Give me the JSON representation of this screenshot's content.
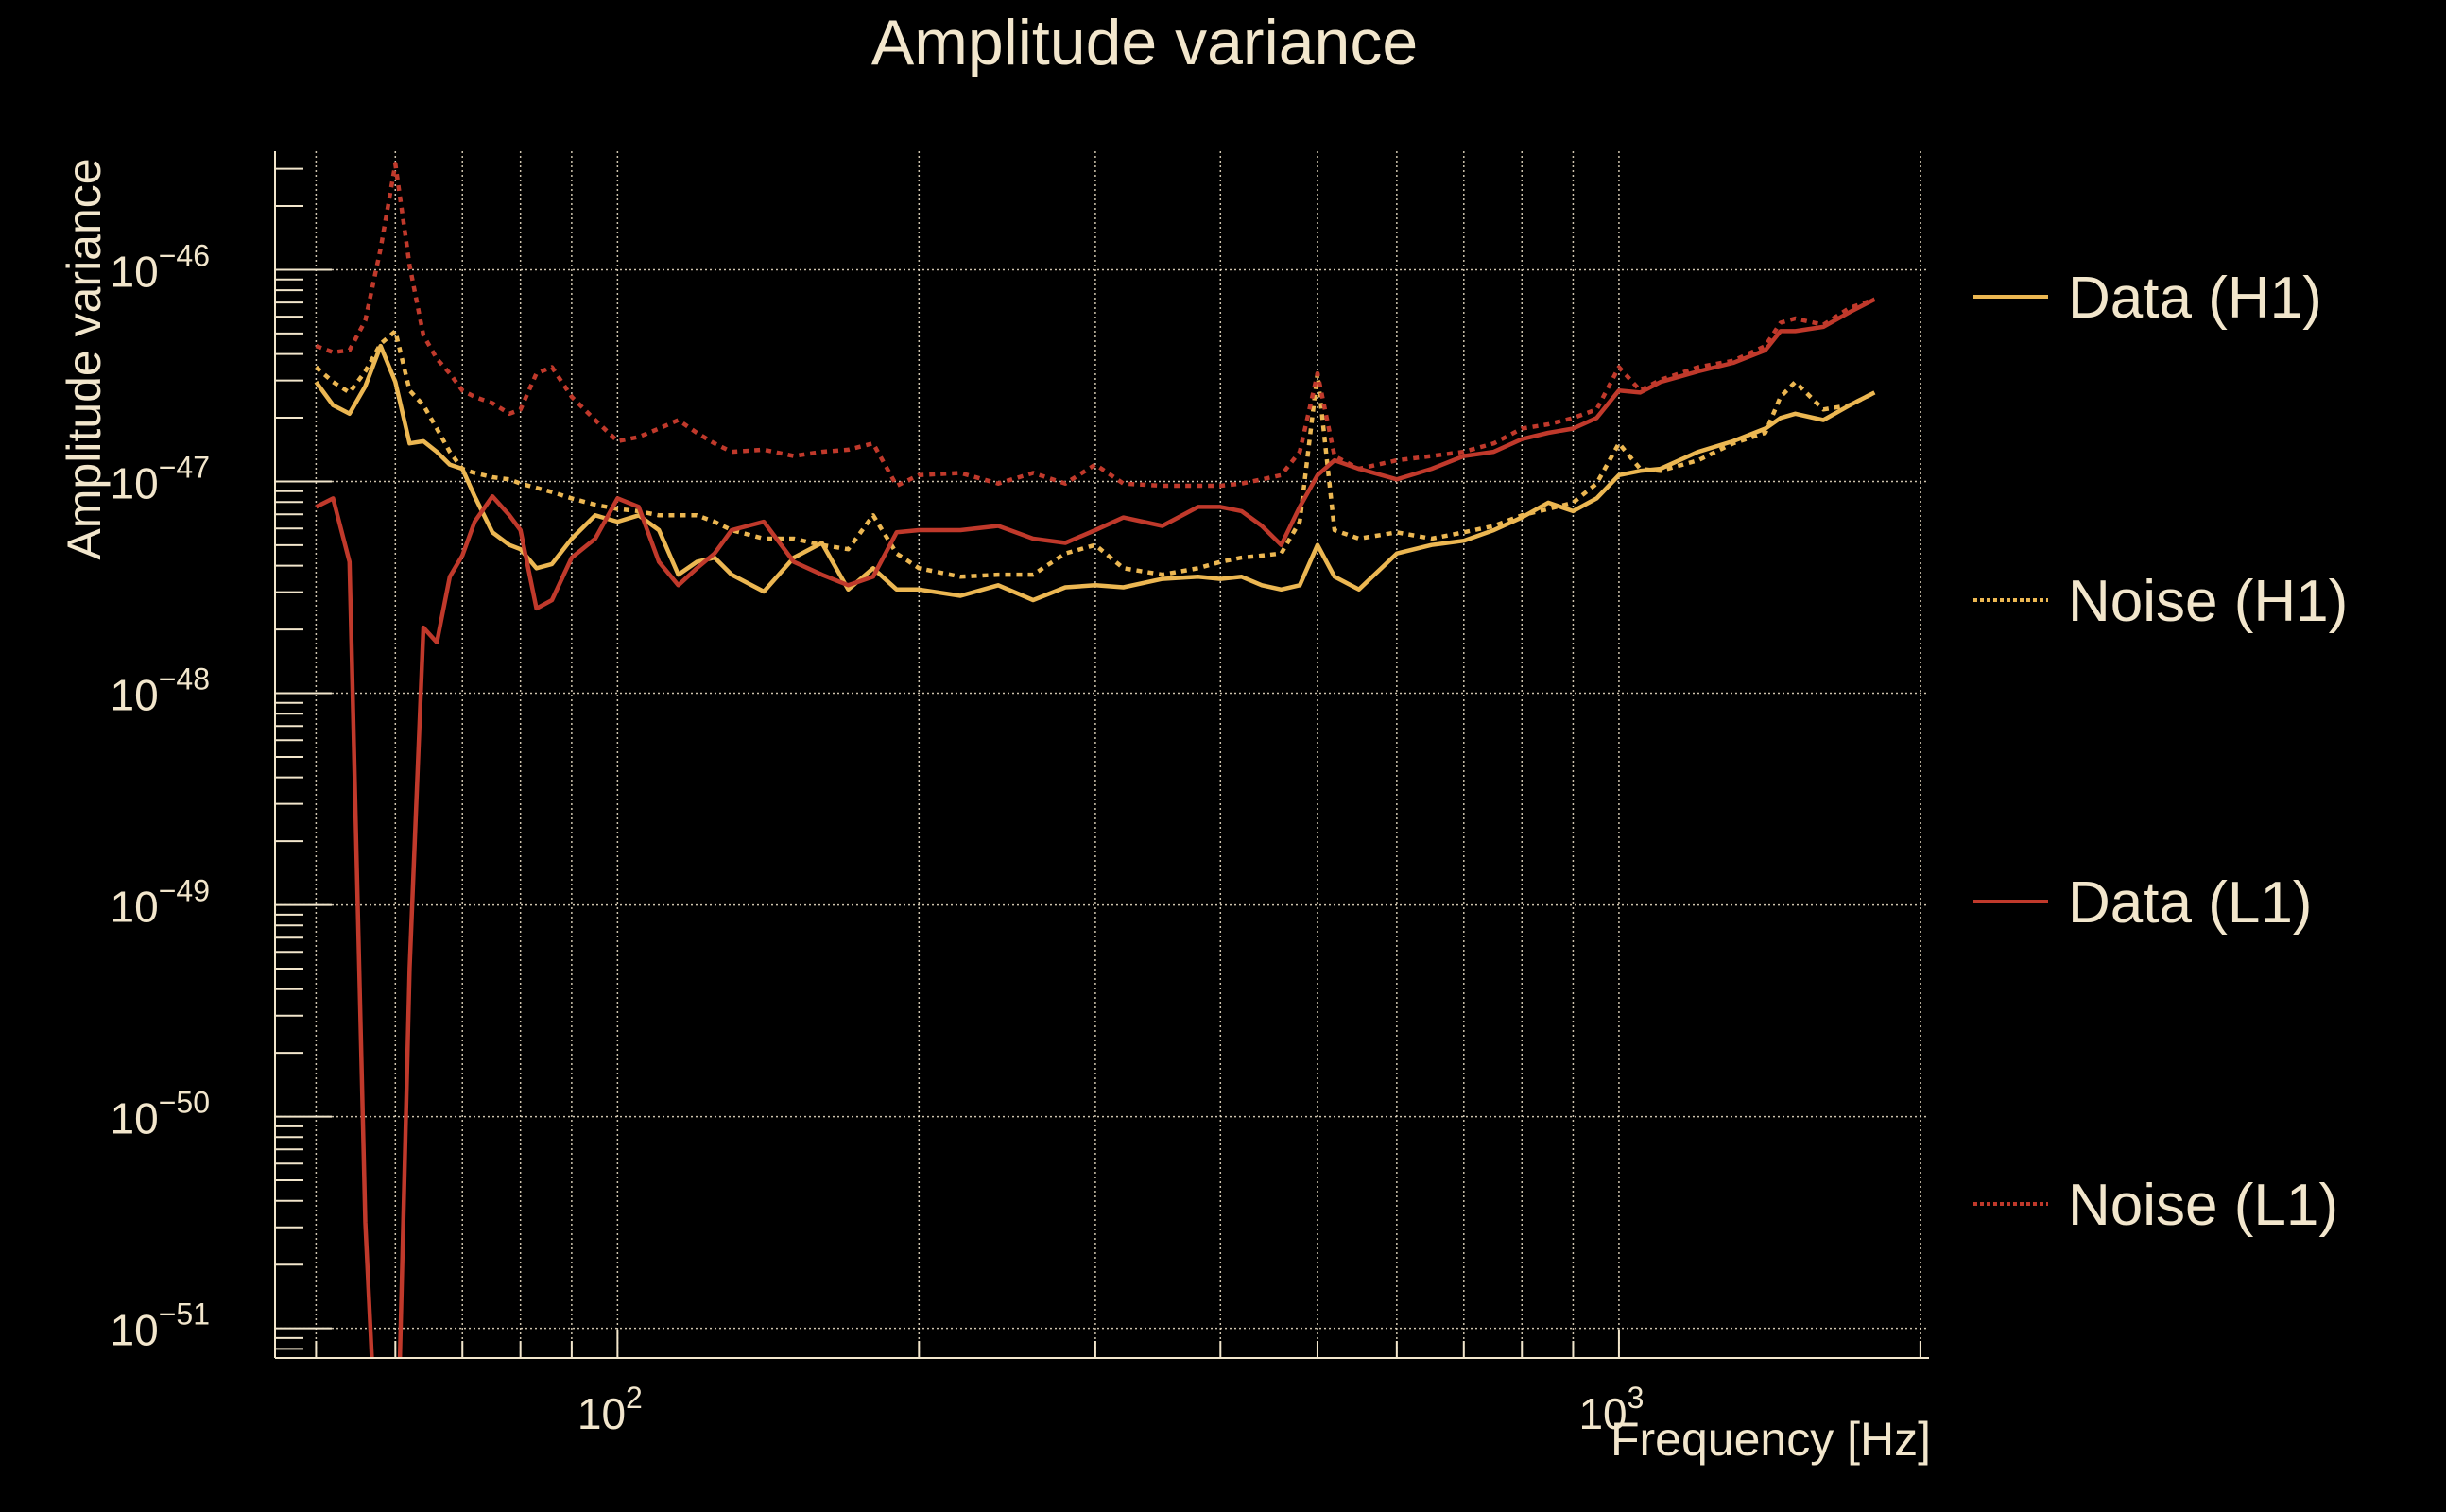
{
  "chart_data": {
    "type": "line",
    "title": "Amplitude variance",
    "xlabel": "Frequency [Hz]",
    "ylabel": "Amplitude variance",
    "xscale": "log",
    "yscale": "log",
    "xlim": [
      45.5,
      2040
    ],
    "ylim_log10": [
      -51.14,
      -45.44
    ],
    "grid": true,
    "legend_position": "right",
    "x_tick_labels": [
      {
        "base": "10",
        "exp": "2",
        "value": 100
      },
      {
        "base": "10",
        "exp": "3",
        "value": 1000
      }
    ],
    "y_tick_labels": [
      {
        "base": "10",
        "exp": "−46",
        "value_log10": -46
      },
      {
        "base": "10",
        "exp": "−47",
        "value_log10": -47
      },
      {
        "base": "10",
        "exp": "−48",
        "value_log10": -48
      },
      {
        "base": "10",
        "exp": "−49",
        "value_log10": -49
      },
      {
        "base": "10",
        "exp": "−50",
        "value_log10": -50
      },
      {
        "base": "10",
        "exp": "−51",
        "value_log10": -51
      }
    ],
    "x": [
      50,
      52,
      54,
      56,
      58,
      60,
      62,
      64,
      66,
      68,
      70,
      72,
      75,
      78,
      80,
      83,
      86,
      90,
      95,
      100,
      105,
      110,
      115,
      120,
      125,
      130,
      140,
      150,
      160,
      170,
      180,
      190,
      200,
      220,
      240,
      260,
      280,
      300,
      320,
      350,
      380,
      400,
      420,
      440,
      460,
      480,
      500,
      520,
      550,
      600,
      650,
      700,
      750,
      800,
      850,
      900,
      950,
      1000,
      1050,
      1100,
      1200,
      1300,
      1400,
      1450,
      1500,
      1600,
      1700,
      1800
    ],
    "series": [
      {
        "name": "Data (H1)",
        "color": "#ecb752",
        "style": "solid",
        "log10_values": [
          -46.53,
          -46.64,
          -46.68,
          -46.55,
          -46.36,
          -46.53,
          -46.82,
          -46.81,
          -46.86,
          -46.92,
          -46.94,
          -47.07,
          -47.24,
          -47.3,
          -47.32,
          -47.41,
          -47.39,
          -47.27,
          -47.16,
          -47.19,
          -47.16,
          -47.23,
          -47.44,
          -47.38,
          -47.36,
          -47.44,
          -47.52,
          -47.36,
          -47.29,
          -47.51,
          -47.41,
          -47.51,
          -47.51,
          -47.54,
          -47.49,
          -47.56,
          -47.5,
          -47.49,
          -47.5,
          -47.46,
          -47.45,
          -47.46,
          -47.45,
          -47.49,
          -47.51,
          -47.49,
          -47.3,
          -47.45,
          -47.51,
          -47.34,
          -47.3,
          -47.28,
          -47.23,
          -47.17,
          -47.1,
          -47.14,
          -47.08,
          -46.97,
          -46.95,
          -46.94,
          -46.86,
          -46.81,
          -46.75,
          -46.7,
          -46.68,
          -46.71,
          -46.64,
          -46.58
        ]
      },
      {
        "name": "Noise (H1)",
        "color": "#ecb752",
        "style": "dotted",
        "log10_values": [
          -46.46,
          -46.53,
          -46.58,
          -46.48,
          -46.35,
          -46.29,
          -46.57,
          -46.64,
          -46.75,
          -46.86,
          -46.94,
          -46.96,
          -46.98,
          -46.99,
          -47.01,
          -47.03,
          -47.05,
          -47.08,
          -47.11,
          -47.13,
          -47.14,
          -47.16,
          -47.16,
          -47.16,
          -47.19,
          -47.23,
          -47.27,
          -47.27,
          -47.3,
          -47.32,
          -47.16,
          -47.34,
          -47.41,
          -47.45,
          -47.44,
          -47.44,
          -47.34,
          -47.3,
          -47.41,
          -47.44,
          -47.41,
          -47.38,
          -47.36,
          -47.35,
          -47.34,
          -47.19,
          -46.49,
          -47.23,
          -47.27,
          -47.24,
          -47.27,
          -47.24,
          -47.21,
          -47.16,
          -47.13,
          -47.1,
          -47.01,
          -46.82,
          -46.94,
          -46.95,
          -46.9,
          -46.82,
          -46.77,
          -46.6,
          -46.53,
          -46.66,
          -46.64,
          -46.58
        ]
      },
      {
        "name": "Data (L1)",
        "color": "#c0392b",
        "style": "solid",
        "log10_values": [
          -47.12,
          -47.08,
          -47.38,
          -50.5,
          -52,
          -52,
          -49.3,
          -47.69,
          -47.76,
          -47.45,
          -47.35,
          -47.19,
          -47.07,
          -47.16,
          -47.23,
          -47.6,
          -47.56,
          -47.36,
          -47.27,
          -47.08,
          -47.12,
          -47.38,
          -47.49,
          -47.41,
          -47.34,
          -47.23,
          -47.19,
          -47.38,
          -47.44,
          -47.49,
          -47.45,
          -47.24,
          -47.23,
          -47.23,
          -47.21,
          -47.27,
          -47.29,
          -47.23,
          -47.17,
          -47.21,
          -47.12,
          -47.12,
          -47.14,
          -47.21,
          -47.3,
          -47.12,
          -46.97,
          -46.9,
          -46.94,
          -46.99,
          -46.94,
          -46.88,
          -46.86,
          -46.8,
          -46.77,
          -46.75,
          -46.7,
          -46.57,
          -46.58,
          -46.53,
          -46.48,
          -46.44,
          -46.38,
          -46.29,
          -46.29,
          -46.27,
          -46.2,
          -46.14
        ]
      },
      {
        "name": "Noise (L1)",
        "color": "#c0392b",
        "style": "dotted",
        "log10_values": [
          -46.36,
          -46.39,
          -46.38,
          -46.24,
          -45.9,
          -45.5,
          -45.98,
          -46.31,
          -46.42,
          -46.49,
          -46.57,
          -46.6,
          -46.63,
          -46.68,
          -46.66,
          -46.49,
          -46.46,
          -46.6,
          -46.71,
          -46.81,
          -46.79,
          -46.75,
          -46.71,
          -46.77,
          -46.82,
          -46.86,
          -46.85,
          -46.88,
          -46.86,
          -46.85,
          -46.82,
          -47.02,
          -46.97,
          -46.96,
          -47.01,
          -46.96,
          -47.01,
          -46.92,
          -47.01,
          -47.02,
          -47.02,
          -47.02,
          -47.01,
          -46.99,
          -46.97,
          -46.86,
          -46.49,
          -46.88,
          -46.94,
          -46.9,
          -46.88,
          -46.86,
          -46.82,
          -46.75,
          -46.73,
          -46.7,
          -46.66,
          -46.46,
          -46.57,
          -46.52,
          -46.46,
          -46.43,
          -46.36,
          -46.25,
          -46.23,
          -46.26,
          -46.18,
          -46.14
        ]
      }
    ]
  },
  "colors": {
    "background": "#000000",
    "text": "#f2e6cc",
    "grid": "#f2e6cc"
  }
}
